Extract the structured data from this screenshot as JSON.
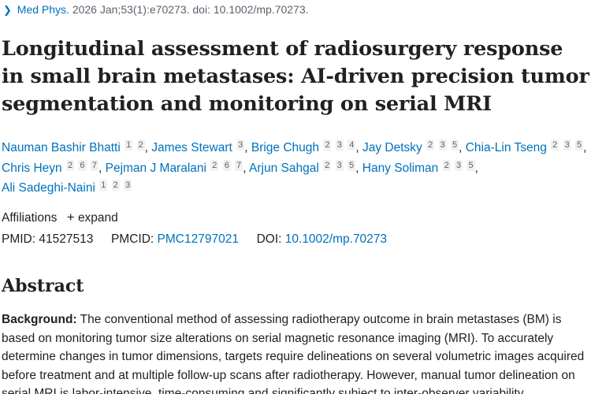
{
  "citation": {
    "journal": "Med Phys.",
    "details": "2026 Jan;53(1):e70273. doi: 10.1002/mp.70273."
  },
  "title": "Longitudinal assessment of radiosurgery response in small brain metastases: AI-driven precision tumor segmentation and monitoring on serial MRI",
  "authors": [
    {
      "name": "Nauman Bashir Bhatti",
      "affs": [
        "1",
        "2"
      ]
    },
    {
      "name": "James Stewart",
      "affs": [
        "3"
      ]
    },
    {
      "name": "Brige Chugh",
      "affs": [
        "2",
        "3",
        "4"
      ]
    },
    {
      "name": "Jay Detsky",
      "affs": [
        "2",
        "3",
        "5"
      ]
    },
    {
      "name": "Chia-Lin Tseng",
      "affs": [
        "2",
        "3",
        "5"
      ]
    },
    {
      "name": "Chris Heyn",
      "affs": [
        "2",
        "6",
        "7"
      ]
    },
    {
      "name": "Pejman J Maralani",
      "affs": [
        "2",
        "6",
        "7"
      ]
    },
    {
      "name": "Arjun Sahgal",
      "affs": [
        "2",
        "3",
        "5"
      ]
    },
    {
      "name": "Hany Soliman",
      "affs": [
        "2",
        "3",
        "5"
      ]
    },
    {
      "name": "Ali Sadeghi-Naini",
      "affs": [
        "1",
        "2",
        "3"
      ]
    }
  ],
  "affiliations": {
    "label": "Affiliations",
    "expand_label": "expand"
  },
  "ids": {
    "pmid_label": "PMID:",
    "pmid": "41527513",
    "pmcid_label": "PMCID:",
    "pmcid": "PMC12797021",
    "doi_label": "DOI:",
    "doi": "10.1002/mp.70273"
  },
  "abstract": {
    "heading": "Abstract",
    "background_label": "Background:",
    "background_text": "The conventional method of assessing radiotherapy outcome in brain metastases (BM) is based on monitoring tumor size alterations on serial magnetic resonance imaging (MRI). To accurately determine changes in tumor dimensions, targets require delineations on several volumetric images acquired before treatment and at multiple follow-up scans after radiotherapy. However, manual tumor delineation on serial MRI is labor-intensive, time-consuming and significantly subject to inter-observer variability."
  }
}
